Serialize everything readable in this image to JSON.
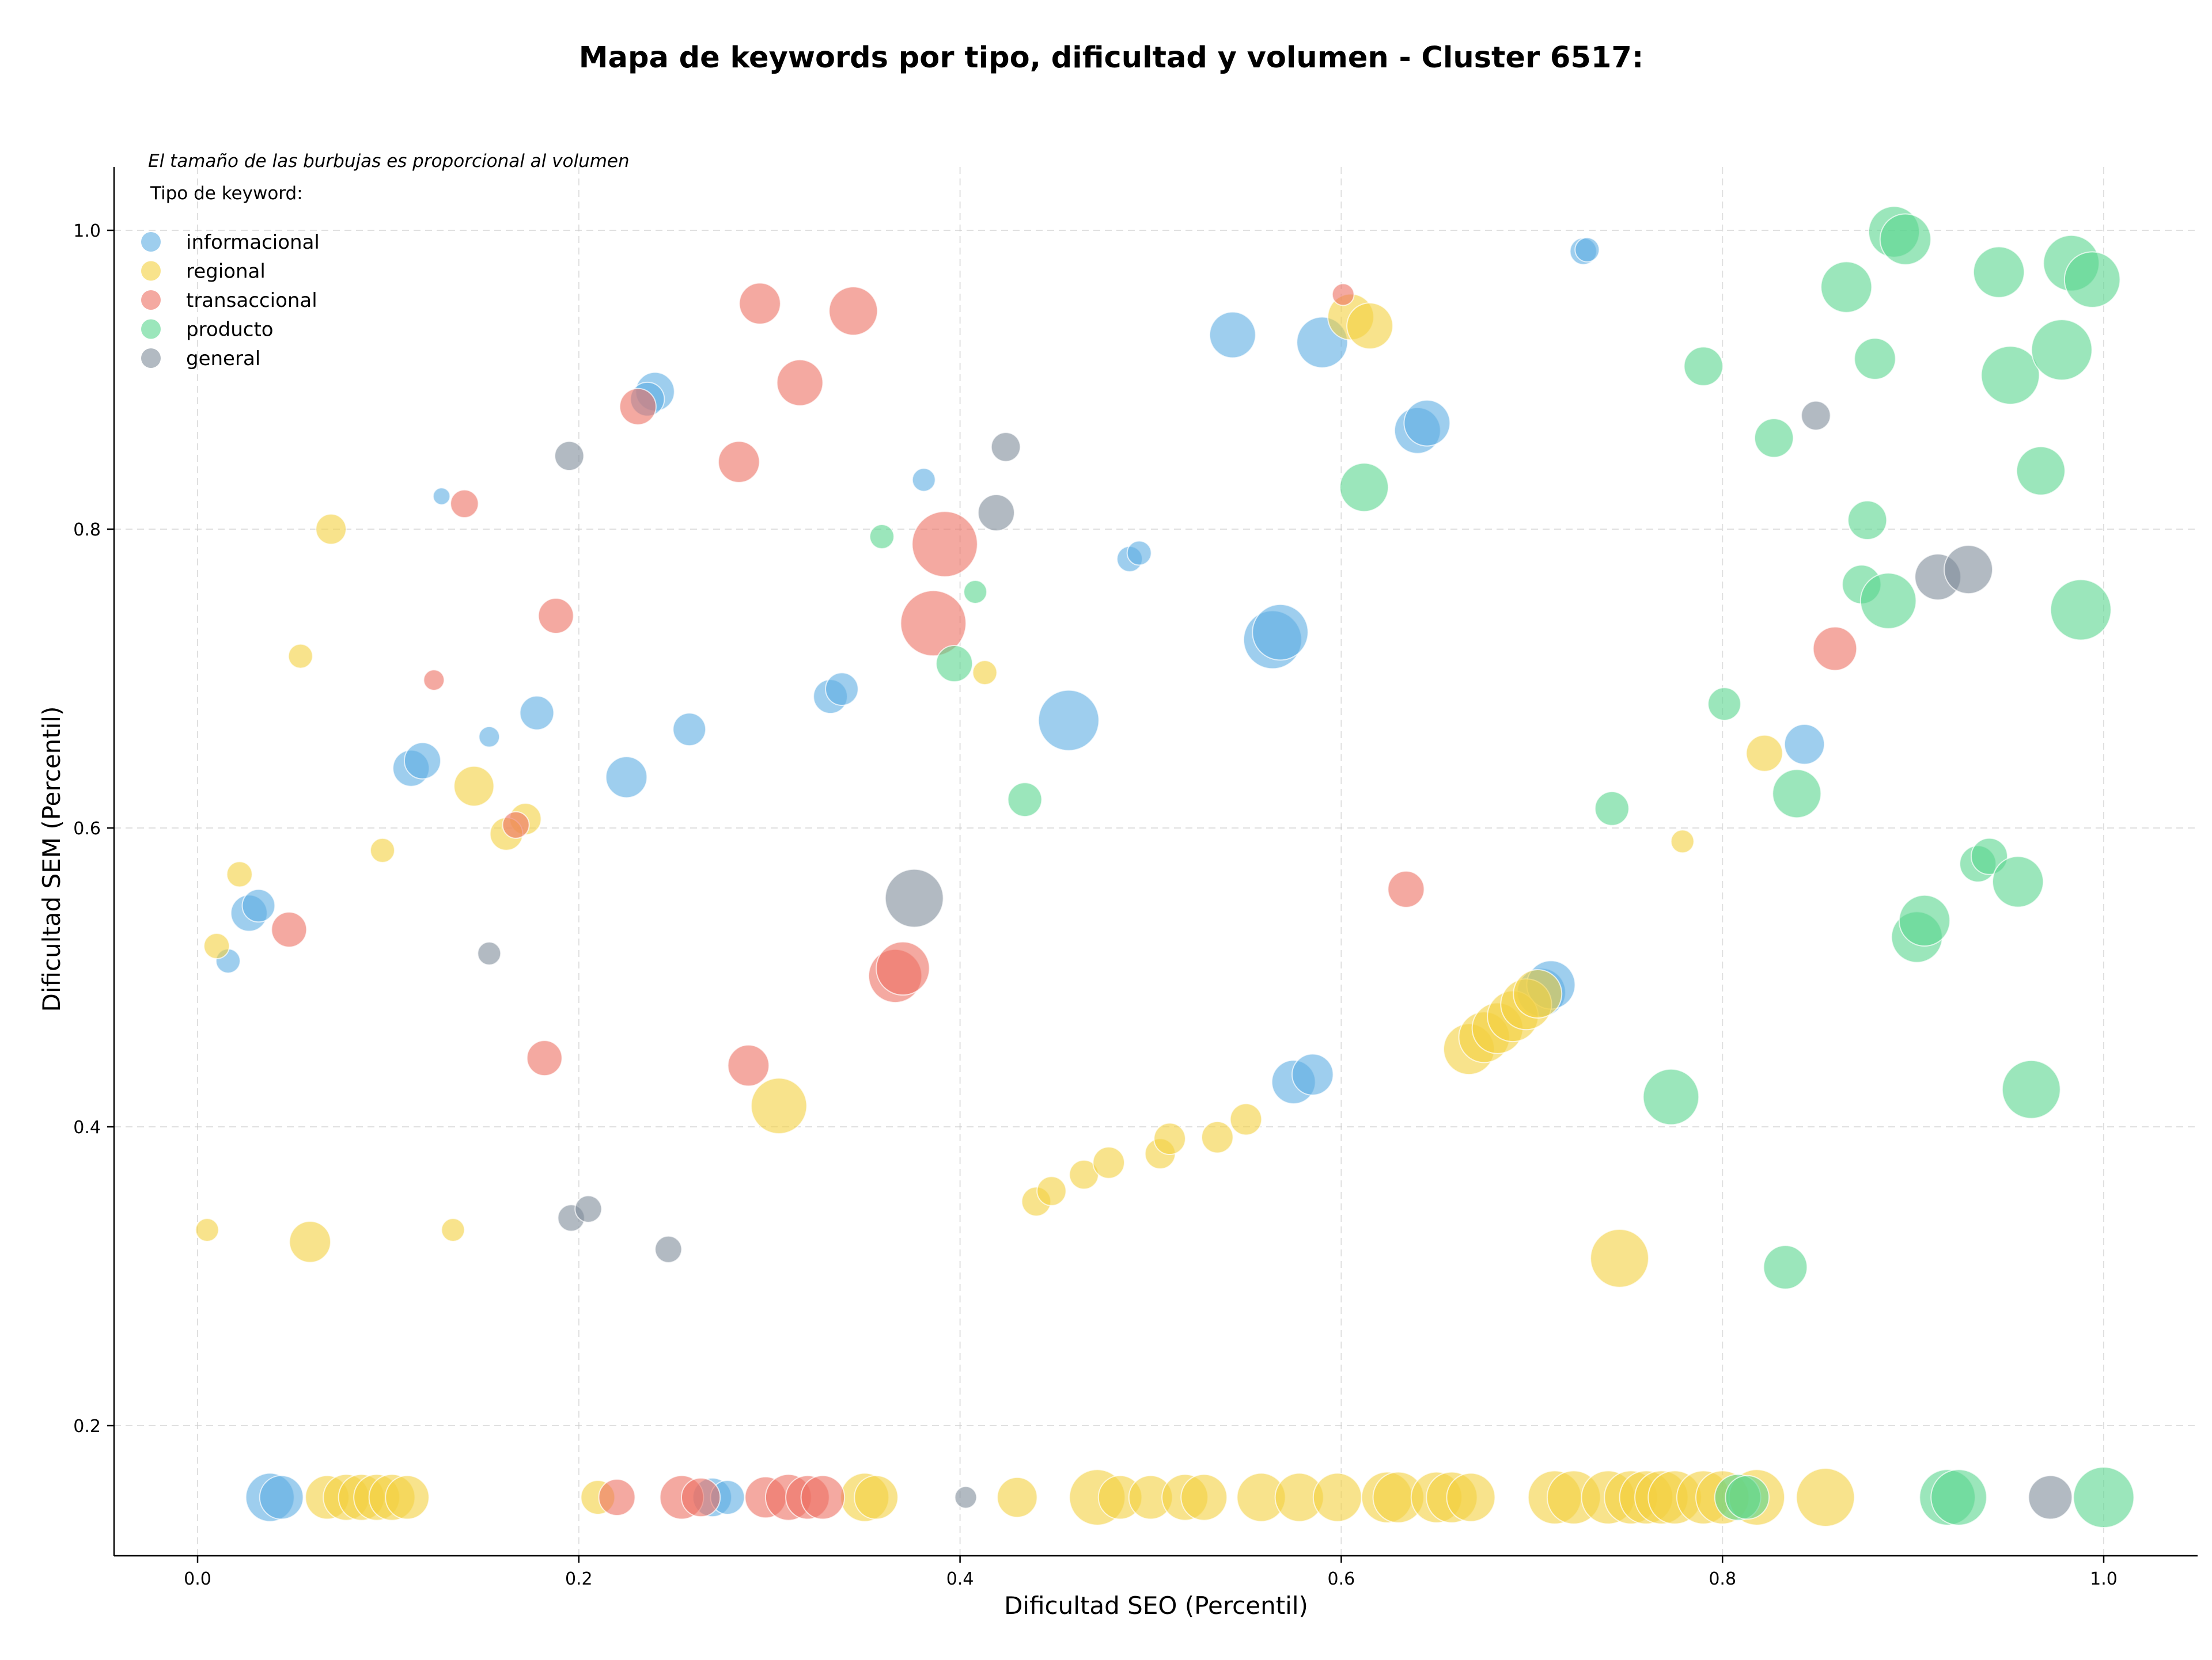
{
  "chart_data": {
    "type": "scatter",
    "title": "Mapa de keywords por tipo, dificultad y volumen - Cluster 6517:",
    "xlabel": "Dificultad SEO (Percentil)",
    "ylabel": "Dificultad SEM (Percentil)",
    "xlim": [
      -0.04,
      1.05
    ],
    "ylim": [
      0.115,
      1.045
    ],
    "x_ticks": [
      "0.0",
      "0.2",
      "0.4",
      "0.6",
      "0.8",
      "1.0"
    ],
    "y_ticks": [
      "0.2",
      "0.4",
      "0.6",
      "0.8",
      "1.0"
    ],
    "grid": true,
    "bubble_note": "El tamaño de las burbujas es proporcional al volumen",
    "legend_title": "Tipo de keyword:",
    "legend_position": "top-left",
    "series": [
      {
        "name": "informacional",
        "color": "#5DADE2",
        "points": [
          {
            "x": 0.128,
            "y": 0.822,
            "r": 14
          },
          {
            "x": 0.153,
            "y": 0.661,
            "r": 17
          },
          {
            "x": 0.178,
            "y": 0.677,
            "r": 28
          },
          {
            "x": 0.112,
            "y": 0.64,
            "r": 30
          },
          {
            "x": 0.118,
            "y": 0.645,
            "r": 30
          },
          {
            "x": 0.24,
            "y": 0.892,
            "r": 32
          },
          {
            "x": 0.236,
            "y": 0.887,
            "r": 28
          },
          {
            "x": 0.225,
            "y": 0.634,
            "r": 34
          },
          {
            "x": 0.258,
            "y": 0.666,
            "r": 27
          },
          {
            "x": 0.027,
            "y": 0.543,
            "r": 30
          },
          {
            "x": 0.032,
            "y": 0.548,
            "r": 27
          },
          {
            "x": 0.016,
            "y": 0.511,
            "r": 20
          },
          {
            "x": 0.332,
            "y": 0.688,
            "r": 28
          },
          {
            "x": 0.338,
            "y": 0.693,
            "r": 27
          },
          {
            "x": 0.381,
            "y": 0.833,
            "r": 19
          },
          {
            "x": 0.457,
            "y": 0.672,
            "r": 50
          },
          {
            "x": 0.489,
            "y": 0.78,
            "r": 21
          },
          {
            "x": 0.494,
            "y": 0.784,
            "r": 20
          },
          {
            "x": 0.543,
            "y": 0.93,
            "r": 38
          },
          {
            "x": 0.564,
            "y": 0.726,
            "r": 48
          },
          {
            "x": 0.568,
            "y": 0.731,
            "r": 46
          },
          {
            "x": 0.575,
            "y": 0.43,
            "r": 36
          },
          {
            "x": 0.585,
            "y": 0.435,
            "r": 34
          },
          {
            "x": 0.59,
            "y": 0.925,
            "r": 42
          },
          {
            "x": 0.64,
            "y": 0.866,
            "r": 38
          },
          {
            "x": 0.645,
            "y": 0.871,
            "r": 38
          },
          {
            "x": 0.705,
            "y": 0.49,
            "r": 40
          },
          {
            "x": 0.71,
            "y": 0.495,
            "r": 40
          },
          {
            "x": 0.727,
            "y": 0.986,
            "r": 22
          },
          {
            "x": 0.729,
            "y": 0.987,
            "r": 20
          },
          {
            "x": 0.843,
            "y": 0.656,
            "r": 33
          },
          {
            "x": 0.038,
            "y": 0.152,
            "r": 40
          },
          {
            "x": 0.044,
            "y": 0.152,
            "r": 36
          },
          {
            "x": 0.27,
            "y": 0.152,
            "r": 32
          },
          {
            "x": 0.278,
            "y": 0.152,
            "r": 28
          }
        ]
      },
      {
        "name": "regional",
        "color": "#F4D03F",
        "points": [
          {
            "x": 0.07,
            "y": 0.8,
            "r": 25
          },
          {
            "x": 0.054,
            "y": 0.715,
            "r": 20
          },
          {
            "x": 0.022,
            "y": 0.569,
            "r": 21
          },
          {
            "x": 0.01,
            "y": 0.521,
            "r": 21
          },
          {
            "x": 0.097,
            "y": 0.585,
            "r": 20
          },
          {
            "x": 0.145,
            "y": 0.628,
            "r": 33
          },
          {
            "x": 0.172,
            "y": 0.606,
            "r": 26
          },
          {
            "x": 0.162,
            "y": 0.596,
            "r": 27
          },
          {
            "x": 0.005,
            "y": 0.331,
            "r": 19
          },
          {
            "x": 0.059,
            "y": 0.323,
            "r": 34
          },
          {
            "x": 0.134,
            "y": 0.331,
            "r": 19
          },
          {
            "x": 0.305,
            "y": 0.414,
            "r": 46
          },
          {
            "x": 0.413,
            "y": 0.704,
            "r": 20
          },
          {
            "x": 0.44,
            "y": 0.35,
            "r": 24
          },
          {
            "x": 0.448,
            "y": 0.357,
            "r": 24
          },
          {
            "x": 0.465,
            "y": 0.368,
            "r": 24
          },
          {
            "x": 0.478,
            "y": 0.376,
            "r": 26
          },
          {
            "x": 0.505,
            "y": 0.382,
            "r": 25
          },
          {
            "x": 0.51,
            "y": 0.392,
            "r": 26
          },
          {
            "x": 0.535,
            "y": 0.393,
            "r": 26
          },
          {
            "x": 0.55,
            "y": 0.405,
            "r": 26
          },
          {
            "x": 0.605,
            "y": 0.942,
            "r": 38
          },
          {
            "x": 0.615,
            "y": 0.936,
            "r": 38
          },
          {
            "x": 0.667,
            "y": 0.452,
            "r": 42
          },
          {
            "x": 0.675,
            "y": 0.46,
            "r": 42
          },
          {
            "x": 0.682,
            "y": 0.466,
            "r": 42
          },
          {
            "x": 0.69,
            "y": 0.474,
            "r": 42
          },
          {
            "x": 0.697,
            "y": 0.482,
            "r": 42
          },
          {
            "x": 0.703,
            "y": 0.489,
            "r": 40
          },
          {
            "x": 0.746,
            "y": 0.312,
            "r": 48
          },
          {
            "x": 0.779,
            "y": 0.591,
            "r": 19
          },
          {
            "x": 0.822,
            "y": 0.65,
            "r": 30
          },
          {
            "x": 0.068,
            "y": 0.152,
            "r": 36
          },
          {
            "x": 0.078,
            "y": 0.152,
            "r": 38
          },
          {
            "x": 0.086,
            "y": 0.152,
            "r": 38
          },
          {
            "x": 0.094,
            "y": 0.152,
            "r": 38
          },
          {
            "x": 0.102,
            "y": 0.152,
            "r": 38
          },
          {
            "x": 0.11,
            "y": 0.152,
            "r": 36
          },
          {
            "x": 0.21,
            "y": 0.152,
            "r": 28
          },
          {
            "x": 0.35,
            "y": 0.152,
            "r": 40
          },
          {
            "x": 0.356,
            "y": 0.152,
            "r": 36
          },
          {
            "x": 0.43,
            "y": 0.152,
            "r": 33
          },
          {
            "x": 0.472,
            "y": 0.152,
            "r": 46
          },
          {
            "x": 0.484,
            "y": 0.152,
            "r": 36
          },
          {
            "x": 0.5,
            "y": 0.152,
            "r": 36
          },
          {
            "x": 0.518,
            "y": 0.152,
            "r": 38
          },
          {
            "x": 0.528,
            "y": 0.152,
            "r": 38
          },
          {
            "x": 0.558,
            "y": 0.152,
            "r": 40
          },
          {
            "x": 0.578,
            "y": 0.152,
            "r": 40
          },
          {
            "x": 0.598,
            "y": 0.152,
            "r": 40
          },
          {
            "x": 0.624,
            "y": 0.152,
            "r": 42
          },
          {
            "x": 0.63,
            "y": 0.152,
            "r": 42
          },
          {
            "x": 0.65,
            "y": 0.152,
            "r": 42
          },
          {
            "x": 0.658,
            "y": 0.152,
            "r": 42
          },
          {
            "x": 0.668,
            "y": 0.152,
            "r": 40
          },
          {
            "x": 0.712,
            "y": 0.152,
            "r": 44
          },
          {
            "x": 0.722,
            "y": 0.152,
            "r": 44
          },
          {
            "x": 0.74,
            "y": 0.152,
            "r": 44
          },
          {
            "x": 0.752,
            "y": 0.152,
            "r": 44
          },
          {
            "x": 0.76,
            "y": 0.152,
            "r": 44
          },
          {
            "x": 0.768,
            "y": 0.152,
            "r": 44
          },
          {
            "x": 0.775,
            "y": 0.152,
            "r": 44
          },
          {
            "x": 0.79,
            "y": 0.152,
            "r": 44
          },
          {
            "x": 0.8,
            "y": 0.152,
            "r": 44
          },
          {
            "x": 0.818,
            "y": 0.152,
            "r": 46
          },
          {
            "x": 0.854,
            "y": 0.152,
            "r": 48
          }
        ]
      },
      {
        "name": "transaccional",
        "color": "#EC7063",
        "points": [
          {
            "x": 0.295,
            "y": 0.951,
            "r": 34
          },
          {
            "x": 0.344,
            "y": 0.946,
            "r": 40
          },
          {
            "x": 0.316,
            "y": 0.898,
            "r": 38
          },
          {
            "x": 0.231,
            "y": 0.882,
            "r": 30
          },
          {
            "x": 0.284,
            "y": 0.845,
            "r": 34
          },
          {
            "x": 0.14,
            "y": 0.817,
            "r": 23
          },
          {
            "x": 0.188,
            "y": 0.742,
            "r": 29
          },
          {
            "x": 0.124,
            "y": 0.699,
            "r": 17
          },
          {
            "x": 0.167,
            "y": 0.602,
            "r": 22
          },
          {
            "x": 0.048,
            "y": 0.532,
            "r": 29
          },
          {
            "x": 0.182,
            "y": 0.446,
            "r": 29
          },
          {
            "x": 0.289,
            "y": 0.441,
            "r": 34
          },
          {
            "x": 0.366,
            "y": 0.501,
            "r": 44
          },
          {
            "x": 0.37,
            "y": 0.506,
            "r": 44
          },
          {
            "x": 0.392,
            "y": 0.79,
            "r": 54
          },
          {
            "x": 0.386,
            "y": 0.737,
            "r": 54
          },
          {
            "x": 0.601,
            "y": 0.957,
            "r": 18
          },
          {
            "x": 0.634,
            "y": 0.559,
            "r": 30
          },
          {
            "x": 0.859,
            "y": 0.72,
            "r": 36
          },
          {
            "x": 0.22,
            "y": 0.152,
            "r": 30
          },
          {
            "x": 0.254,
            "y": 0.152,
            "r": 36
          },
          {
            "x": 0.264,
            "y": 0.152,
            "r": 32
          },
          {
            "x": 0.298,
            "y": 0.152,
            "r": 34
          },
          {
            "x": 0.31,
            "y": 0.152,
            "r": 38
          },
          {
            "x": 0.32,
            "y": 0.152,
            "r": 36
          },
          {
            "x": 0.328,
            "y": 0.152,
            "r": 36
          }
        ]
      },
      {
        "name": "producto",
        "color": "#58D68D",
        "points": [
          {
            "x": 0.359,
            "y": 0.795,
            "r": 20
          },
          {
            "x": 0.408,
            "y": 0.758,
            "r": 19
          },
          {
            "x": 0.397,
            "y": 0.71,
            "r": 30
          },
          {
            "x": 0.434,
            "y": 0.619,
            "r": 28
          },
          {
            "x": 0.612,
            "y": 0.828,
            "r": 40
          },
          {
            "x": 0.742,
            "y": 0.613,
            "r": 28
          },
          {
            "x": 0.773,
            "y": 0.42,
            "r": 46
          },
          {
            "x": 0.79,
            "y": 0.909,
            "r": 32
          },
          {
            "x": 0.801,
            "y": 0.683,
            "r": 27
          },
          {
            "x": 0.827,
            "y": 0.861,
            "r": 32
          },
          {
            "x": 0.833,
            "y": 0.306,
            "r": 36
          },
          {
            "x": 0.839,
            "y": 0.623,
            "r": 40
          },
          {
            "x": 0.865,
            "y": 0.962,
            "r": 42
          },
          {
            "x": 0.873,
            "y": 0.763,
            "r": 32
          },
          {
            "x": 0.876,
            "y": 0.806,
            "r": 32
          },
          {
            "x": 0.88,
            "y": 0.914,
            "r": 34
          },
          {
            "x": 0.887,
            "y": 0.752,
            "r": 46
          },
          {
            "x": 0.89,
            "y": 0.999,
            "r": 42
          },
          {
            "x": 0.896,
            "y": 0.994,
            "r": 42
          },
          {
            "x": 0.902,
            "y": 0.527,
            "r": 42
          },
          {
            "x": 0.906,
            "y": 0.538,
            "r": 42
          },
          {
            "x": 0.934,
            "y": 0.576,
            "r": 30
          },
          {
            "x": 0.94,
            "y": 0.581,
            "r": 30
          },
          {
            "x": 0.945,
            "y": 0.972,
            "r": 42
          },
          {
            "x": 0.951,
            "y": 0.903,
            "r": 48
          },
          {
            "x": 0.955,
            "y": 0.564,
            "r": 42
          },
          {
            "x": 0.962,
            "y": 0.425,
            "r": 48
          },
          {
            "x": 0.967,
            "y": 0.839,
            "r": 40
          },
          {
            "x": 0.978,
            "y": 0.92,
            "r": 50
          },
          {
            "x": 0.983,
            "y": 0.978,
            "r": 46
          },
          {
            "x": 0.988,
            "y": 0.746,
            "r": 50
          },
          {
            "x": 0.994,
            "y": 0.967,
            "r": 46
          },
          {
            "x": 0.808,
            "y": 0.152,
            "r": 38
          },
          {
            "x": 0.813,
            "y": 0.152,
            "r": 36
          },
          {
            "x": 0.918,
            "y": 0.152,
            "r": 46
          },
          {
            "x": 0.924,
            "y": 0.152,
            "r": 46
          },
          {
            "x": 1.0,
            "y": 0.152,
            "r": 50
          }
        ]
      },
      {
        "name": "general",
        "color": "#7F8C9A",
        "points": [
          {
            "x": 0.195,
            "y": 0.849,
            "r": 24
          },
          {
            "x": 0.424,
            "y": 0.855,
            "r": 24
          },
          {
            "x": 0.419,
            "y": 0.811,
            "r": 30
          },
          {
            "x": 0.153,
            "y": 0.516,
            "r": 19
          },
          {
            "x": 0.376,
            "y": 0.553,
            "r": 48
          },
          {
            "x": 0.196,
            "y": 0.339,
            "r": 22
          },
          {
            "x": 0.205,
            "y": 0.345,
            "r": 22
          },
          {
            "x": 0.247,
            "y": 0.318,
            "r": 22
          },
          {
            "x": 0.849,
            "y": 0.876,
            "r": 24
          },
          {
            "x": 0.913,
            "y": 0.768,
            "r": 38
          },
          {
            "x": 0.929,
            "y": 0.773,
            "r": 40
          },
          {
            "x": 0.403,
            "y": 0.152,
            "r": 18
          },
          {
            "x": 0.972,
            "y": 0.152,
            "r": 36
          }
        ]
      }
    ]
  }
}
